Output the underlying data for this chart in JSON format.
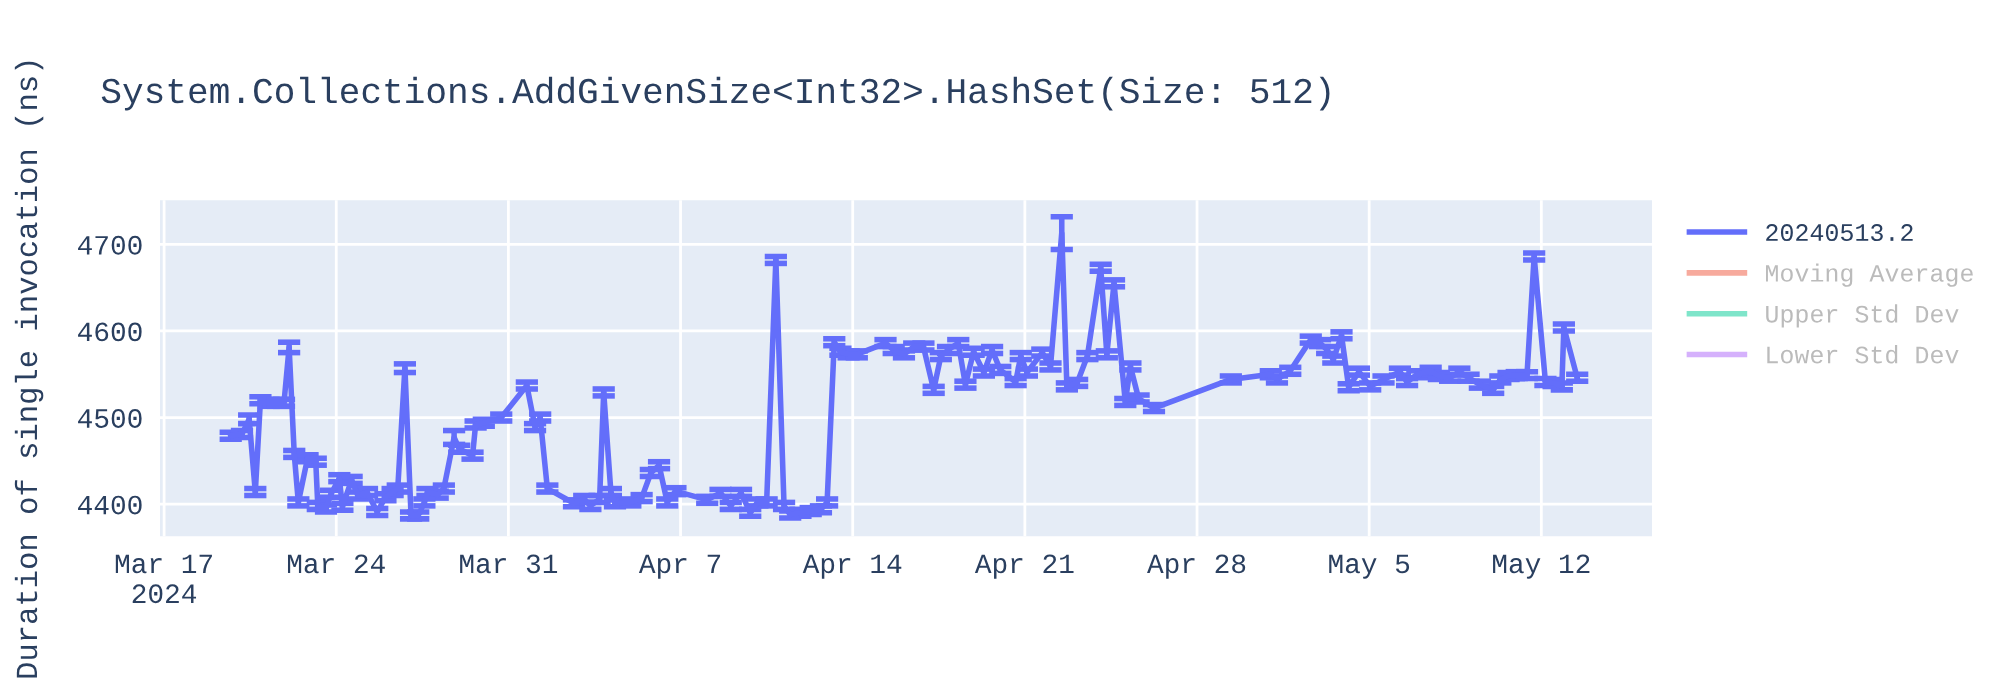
{
  "chart_data": {
    "type": "line",
    "title": "System.Collections.AddGivenSize<Int32>.HashSet(Size: 512)",
    "ylabel": "Duration of single invocation (ns)",
    "x": [
      "2024-03-19T17:00",
      "2024-03-20T04:00",
      "2024-03-20T11:00",
      "2024-03-20T17:00",
      "2024-03-20T22:00",
      "2024-03-21T06:00",
      "2024-03-21T15:00",
      "2024-03-21T21:00",
      "2024-03-22T02:00",
      "2024-03-22T07:00",
      "2024-03-22T11:00",
      "2024-03-22T20:00",
      "2024-03-23T04:00",
      "2024-03-23T06:00",
      "2024-03-23T14:00",
      "2024-03-23T19:00",
      "2024-03-24T03:00",
      "2024-03-24T06:00",
      "2024-03-24T15:00",
      "2024-03-24T21:00",
      "2024-03-25T06:00",
      "2024-03-25T16:00",
      "2024-03-26T00:00",
      "2024-03-26T07:00",
      "2024-03-26T12:00",
      "2024-03-26T19:00",
      "2024-03-27T01:00",
      "2024-03-27T08:00",
      "2024-03-27T14:00",
      "2024-03-27T17:00",
      "2024-03-28T03:00",
      "2024-03-28T09:00",
      "2024-03-28T19:00",
      "2024-03-29T00:00",
      "2024-03-29T13:00",
      "2024-03-29T16:00",
      "2024-03-30T00:00",
      "2024-03-30T17:00",
      "2024-03-31T18:00",
      "2024-04-01T02:00",
      "2024-04-01T07:00",
      "2024-04-01T14:00",
      "2024-04-02T16:00",
      "2024-04-03T02:00",
      "2024-04-03T08:00",
      "2024-04-03T17:00",
      "2024-04-03T21:00",
      "2024-04-04T04:00",
      "2024-04-04T08:00",
      "2024-04-04T23:00",
      "2024-04-05T10:00",
      "2024-04-05T19:00",
      "2024-04-06T03:00",
      "2024-04-06T11:00",
      "2024-04-06T19:00",
      "2024-04-08T02:00",
      "2024-04-08T15:00",
      "2024-04-09T01:00",
      "2024-04-09T11:00",
      "2024-04-09T20:00",
      "2024-04-10T03:00",
      "2024-04-10T12:00",
      "2024-04-10T21:00",
      "2024-04-11T05:00",
      "2024-04-11T11:00",
      "2024-04-11T21:00",
      "2024-04-12T07:00",
      "2024-04-12T17:00",
      "2024-04-12T23:00",
      "2024-04-13T06:00",
      "2024-04-13T12:00",
      "2024-04-13T20:00",
      "2024-04-14T04:00",
      "2024-04-15T08:00",
      "2024-04-15T16:00",
      "2024-04-16T02:00",
      "2024-04-16T12:00",
      "2024-04-16T21:00",
      "2024-04-17T07:00",
      "2024-04-17T14:00",
      "2024-04-17T21:00",
      "2024-04-18T07:00",
      "2024-04-18T14:00",
      "2024-04-18T22:00",
      "2024-04-19T08:00",
      "2024-04-19T16:00",
      "2024-04-20T00:00",
      "2024-04-20T15:00",
      "2024-04-20T20:00",
      "2024-04-21T02:00",
      "2024-04-21T17:00",
      "2024-04-22T01:00",
      "2024-04-22T12:00",
      "2024-04-22T17:00",
      "2024-04-23T03:00",
      "2024-04-23T13:00",
      "2024-04-24T02:00",
      "2024-04-24T08:00",
      "2024-04-24T15:00",
      "2024-04-25T02:00",
      "2024-04-25T07:00",
      "2024-04-25T15:00",
      "2024-04-26T06:00",
      "2024-04-29T09:00",
      "2024-05-01T00:00",
      "2024-05-01T06:00",
      "2024-05-01T19:00",
      "2024-05-02T15:00",
      "2024-05-03T00:00",
      "2024-05-03T07:00",
      "2024-05-03T13:00",
      "2024-05-03T21:00",
      "2024-05-04T04:00",
      "2024-05-04T14:00",
      "2024-05-05T01:00",
      "2024-05-05T14:00",
      "2024-05-06T06:00",
      "2024-05-06T13:00",
      "2024-05-06T23:00",
      "2024-05-07T12:00",
      "2024-05-07T20:00",
      "2024-05-08T07:00",
      "2024-05-08T16:00",
      "2024-05-09T01:00",
      "2024-05-09T12:00",
      "2024-05-10T01:00",
      "2024-05-10T08:00",
      "2024-05-10T16:00",
      "2024-05-11T00:00",
      "2024-05-11T10:00",
      "2024-05-11T17:00",
      "2024-05-12T04:00",
      "2024-05-12T12:00",
      "2024-05-12T20:00",
      "2024-05-12T22:00",
      "2024-05-13T11:00"
    ],
    "series": [
      {
        "name": "20240513.2",
        "color": "#636efa",
        "values": [
          4479,
          4481,
          4498,
          4414,
          4520,
          4517,
          4517,
          4517,
          4581,
          4458,
          4402,
          4453,
          4449,
          4398,
          4395,
          4412,
          4430,
          4397,
          4428,
          4410,
          4414,
          4391,
          4408,
          4414,
          4418,
          4557,
          4387,
          4387,
          4402,
          4414,
          4411,
          4418,
          4477,
          4464,
          4456,
          4492,
          4494,
          4500,
          4537,
          4489,
          4500,
          4418,
          4401,
          4406,
          4398,
          4406,
          4529,
          4414,
          4401,
          4402,
          4407,
          4436,
          4445,
          4402,
          4415,
          4405,
          4413,
          4398,
          4413,
          4390,
          4402,
          4402,
          4682,
          4398,
          4388,
          4390,
          4392,
          4394,
          4402,
          4587,
          4576,
          4573,
          4573,
          4586,
          4578,
          4573,
          4582,
          4582,
          4532,
          4571,
          4578,
          4586,
          4538,
          4576,
          4552,
          4578,
          4555,
          4541,
          4571,
          4552,
          4575,
          4559,
          4713,
          4536,
          4540,
          4571,
          4673,
          4573,
          4655,
          4518,
          4559,
          4522,
          4511,
          4544,
          4550,
          4544,
          4554,
          4590,
          4586,
          4578,
          4567,
          4595,
          4535,
          4553,
          4536,
          4544,
          4553,
          4541,
          4550,
          4554,
          4548,
          4546,
          4553,
          4546,
          4538,
          4532,
          4544,
          4548,
          4549,
          4549,
          4686,
          4541,
          4540,
          4536,
          4604,
          4546
        ],
        "errors": [
          4,
          4,
          5,
          4,
          4,
          4,
          4,
          4,
          6,
          4,
          4,
          4,
          4,
          4,
          4,
          4,
          4,
          4,
          4,
          4,
          4,
          4,
          4,
          4,
          4,
          5,
          4,
          4,
          4,
          4,
          4,
          4,
          8,
          4,
          4,
          4,
          4,
          4,
          4,
          4,
          4,
          4,
          4,
          4,
          4,
          4,
          4,
          4,
          4,
          4,
          4,
          4,
          4,
          4,
          4,
          4,
          4,
          4,
          4,
          4,
          4,
          4,
          4,
          4,
          4,
          4,
          4,
          4,
          4,
          4,
          4,
          4,
          4,
          4,
          4,
          4,
          4,
          4,
          4,
          4,
          4,
          4,
          4,
          4,
          4,
          4,
          4,
          4,
          4,
          4,
          4,
          4,
          19,
          4,
          4,
          4,
          4,
          4,
          4,
          4,
          4,
          4,
          4,
          4,
          4,
          4,
          4,
          4,
          4,
          4,
          4,
          4,
          4,
          4,
          4,
          4,
          4,
          4,
          4,
          4,
          4,
          4,
          4,
          4,
          4,
          4,
          4,
          4,
          4,
          4,
          4,
          4,
          4,
          4,
          4,
          4
        ]
      },
      {
        "name": "Moving Average",
        "color": "#ef553b",
        "values": [
          null,
          null,
          null,
          null,
          null,
          null,
          null,
          null,
          null,
          null,
          null,
          null,
          null,
          null,
          null,
          null,
          null,
          null,
          null,
          null,
          null,
          null,
          null,
          null,
          null,
          null,
          null,
          null,
          null,
          null,
          null,
          null,
          null,
          null,
          null,
          null,
          null,
          null,
          null,
          null,
          null,
          null,
          null,
          null,
          null,
          null,
          null,
          null,
          null,
          null,
          null,
          null,
          null,
          null,
          null,
          null,
          null,
          null,
          null,
          null,
          null,
          null,
          null,
          null,
          null,
          null,
          null,
          null,
          null,
          null,
          null,
          null,
          null,
          null,
          null,
          null,
          null,
          null,
          null,
          null,
          null,
          null,
          null,
          null,
          null,
          null,
          null,
          null,
          null,
          null,
          null,
          null,
          null,
          null,
          null,
          null,
          null,
          null,
          null,
          null,
          null,
          null,
          null,
          null,
          null,
          null,
          null,
          null,
          null,
          null,
          null,
          null,
          null,
          null,
          null,
          null,
          null,
          null,
          null,
          null,
          null,
          null,
          null,
          null,
          null,
          null,
          null,
          null,
          null,
          null,
          null,
          null,
          null,
          null,
          null,
          null
        ]
      },
      {
        "name": "Upper Std Dev",
        "color": "#00cc96",
        "values": [
          null,
          null,
          null,
          null,
          null,
          null,
          null,
          null,
          null,
          null,
          null,
          null,
          null,
          null,
          null,
          null,
          null,
          null,
          null,
          null,
          null,
          null,
          null,
          null,
          null,
          null,
          null,
          null,
          null,
          null,
          null,
          null,
          null,
          null,
          null,
          null,
          null,
          null,
          null,
          null,
          null,
          null,
          null,
          null,
          null,
          null,
          null,
          null,
          null,
          null,
          null,
          null,
          null,
          null,
          null,
          null,
          null,
          null,
          null,
          null,
          null,
          null,
          null,
          null,
          null,
          null,
          null,
          null,
          null,
          null,
          null,
          null,
          null,
          null,
          null,
          null,
          null,
          null,
          null,
          null,
          null,
          null,
          null,
          null,
          null,
          null,
          null,
          null,
          null,
          null,
          null,
          null,
          null,
          null,
          null,
          null,
          null,
          null,
          null,
          null,
          null,
          null,
          null,
          null,
          null,
          null,
          null,
          null,
          null,
          null,
          null,
          null,
          null,
          null,
          null,
          null,
          null,
          null,
          null,
          null,
          null,
          null,
          null,
          null,
          null,
          null,
          null,
          null,
          null,
          null,
          null,
          null,
          null,
          null,
          null,
          null
        ]
      },
      {
        "name": "Lower Std Dev",
        "color": "#ab63fa",
        "values": [
          null,
          null,
          null,
          null,
          null,
          null,
          null,
          null,
          null,
          null,
          null,
          null,
          null,
          null,
          null,
          null,
          null,
          null,
          null,
          null,
          null,
          null,
          null,
          null,
          null,
          null,
          null,
          null,
          null,
          null,
          null,
          null,
          null,
          null,
          null,
          null,
          null,
          null,
          null,
          null,
          null,
          null,
          null,
          null,
          null,
          null,
          null,
          null,
          null,
          null,
          null,
          null,
          null,
          null,
          null,
          null,
          null,
          null,
          null,
          null,
          null,
          null,
          null,
          null,
          null,
          null,
          null,
          null,
          null,
          null,
          null,
          null,
          null,
          null,
          null,
          null,
          null,
          null,
          null,
          null,
          null,
          null,
          null,
          null,
          null,
          null,
          null,
          null,
          null,
          null,
          null,
          null,
          null,
          null,
          null,
          null,
          null,
          null,
          null,
          null,
          null,
          null,
          null,
          null,
          null,
          null,
          null,
          null,
          null,
          null,
          null,
          null,
          null,
          null,
          null,
          null,
          null,
          null,
          null,
          null,
          null,
          null,
          null,
          null,
          null,
          null,
          null,
          null,
          null,
          null,
          null,
          null,
          null,
          null,
          null,
          null
        ]
      }
    ],
    "xlim": [
      "2024-03-16T20:00",
      "2024-05-16T12:00"
    ],
    "xticks": [
      {
        "value": "2024-03-17",
        "label": "Mar 17\n2024"
      },
      {
        "value": "2024-03-24",
        "label": "Mar 24"
      },
      {
        "value": "2024-03-31",
        "label": "Mar 31"
      },
      {
        "value": "2024-04-07",
        "label": "Apr 7"
      },
      {
        "value": "2024-04-14",
        "label": "Apr 14"
      },
      {
        "value": "2024-04-21",
        "label": "Apr 21"
      },
      {
        "value": "2024-04-28",
        "label": "Apr 28"
      },
      {
        "value": "2024-05-05",
        "label": "May 5"
      },
      {
        "value": "2024-05-12",
        "label": "May 12"
      }
    ],
    "ylim": [
      4363,
      4751
    ],
    "yticks": [
      4400,
      4500,
      4600,
      4700
    ],
    "grid": true,
    "legend": "top right",
    "marker": "none",
    "line_style": "solid"
  }
}
